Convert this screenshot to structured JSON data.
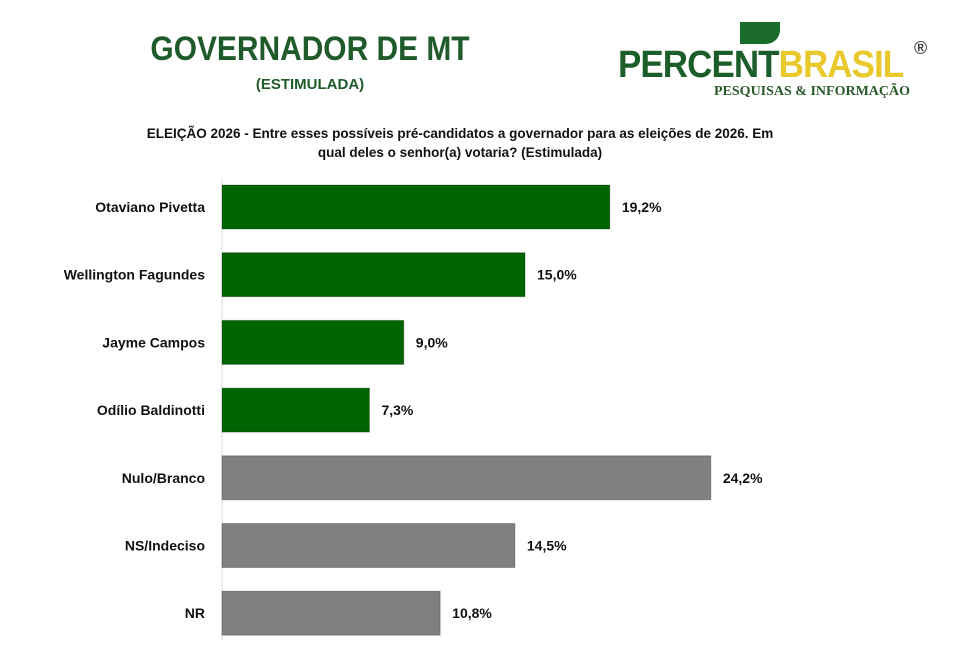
{
  "header": {
    "title": "GOVERNADOR DE MT",
    "subtitle": "(ESTIMULADA)",
    "logo": {
      "part1": "PERCENT",
      "part2": "BRASIL",
      "registered": "®",
      "tagline": "PESQUISAS & INFORMAÇÃO"
    }
  },
  "chart_data": {
    "type": "bar",
    "orientation": "horizontal",
    "title": "ELEIÇÃO 2026 - Entre esses possíveis pré-candidatos a governador para as eleições de 2026. Em qual deles o senhor(a) votaria? (Estimulada)",
    "title_lines": [
      "ELEIÇÃO 2026 - Entre esses possíveis pré-candidatos a governador para as eleições de 2026. Em",
      "qual deles o senhor(a) votaria? (Estimulada)"
    ],
    "categories": [
      "Otaviano Pivetta",
      "Wellington Fagundes",
      "Jayme Campos",
      "Odílio Baldinotti",
      "Nulo/Branco",
      "NS/Indeciso",
      "NR"
    ],
    "values": [
      19.2,
      15.0,
      9.0,
      7.3,
      24.2,
      14.5,
      10.8
    ],
    "value_labels": [
      "19,2%",
      "15,0%",
      "9,0%",
      "7,3%",
      "24,2%",
      "14,5%",
      "10,8%"
    ],
    "colors": [
      "#006400",
      "#006400",
      "#006400",
      "#006400",
      "#808080",
      "#808080",
      "#808080"
    ],
    "xlabel": "",
    "ylabel": "",
    "xlim": [
      0,
      26
    ],
    "grid": false
  }
}
